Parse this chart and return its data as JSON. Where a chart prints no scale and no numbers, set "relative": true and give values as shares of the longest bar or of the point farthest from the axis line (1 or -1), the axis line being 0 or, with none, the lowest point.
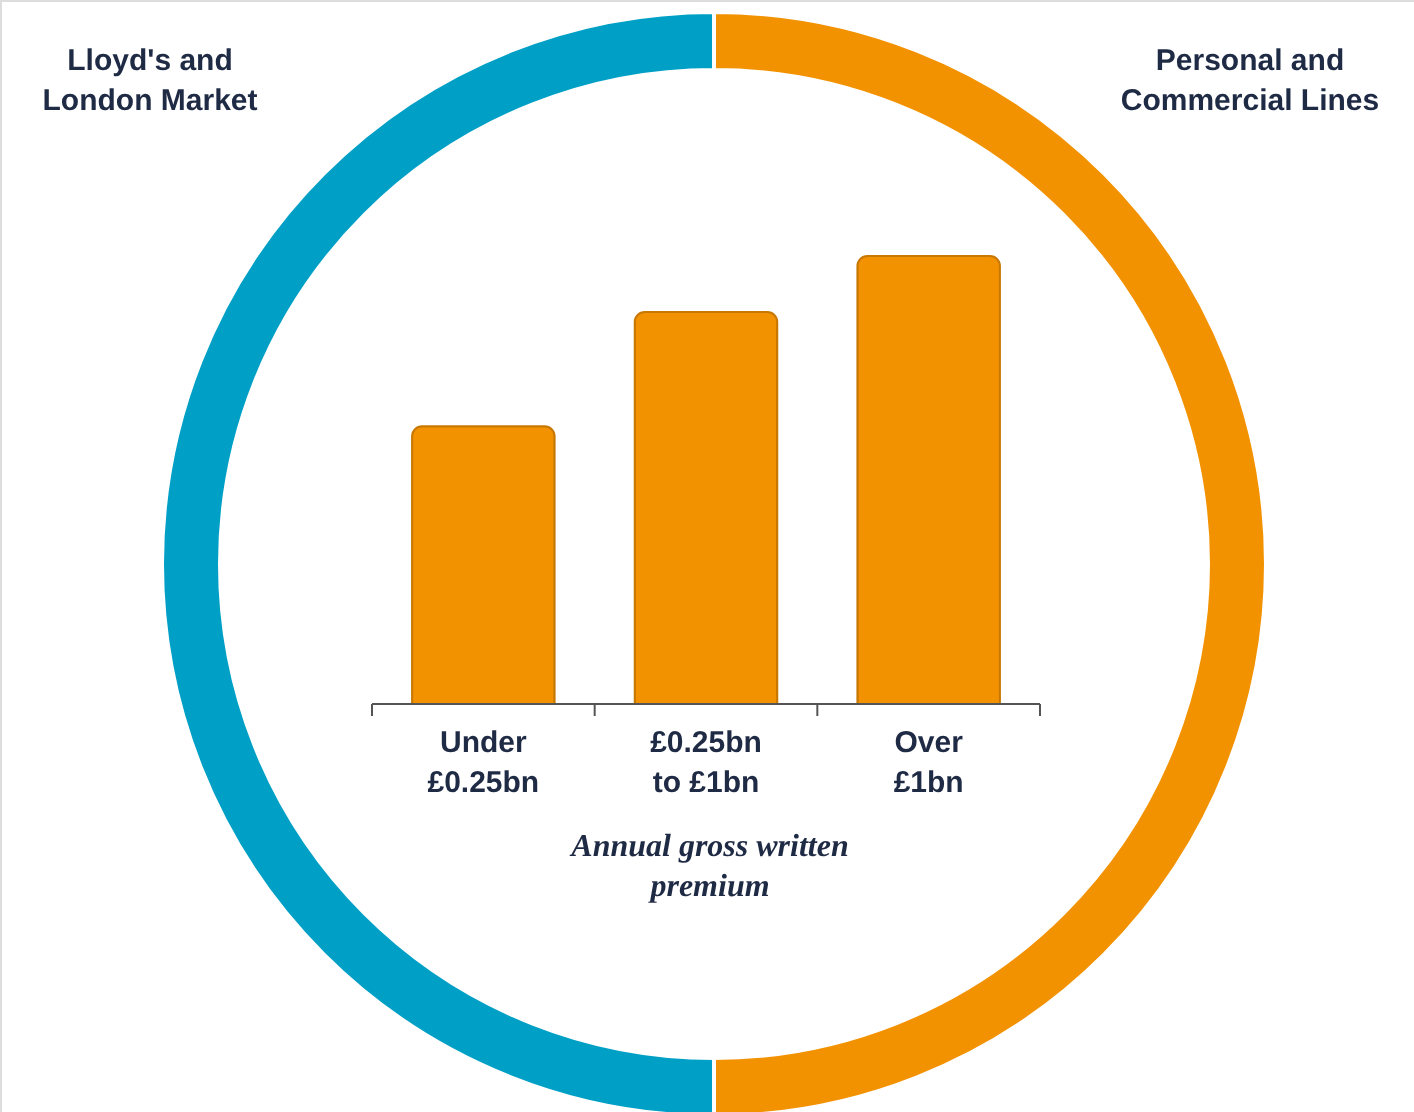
{
  "chart_data": [
    {
      "type": "donut",
      "categories": [
        "Lloyd's and London Market",
        "Personal and Commercial Lines"
      ],
      "values": [
        50,
        50
      ],
      "colors": [
        "#00a0c6",
        "#f39200"
      ]
    },
    {
      "type": "bar",
      "relative": true,
      "categories": [
        "Under £0.25bn",
        "£0.25bn to £1bn",
        "Over £1bn"
      ],
      "values": [
        0.62,
        0.875,
        1
      ],
      "color": "#f39200",
      "xlabel": "Annual gross written premium"
    }
  ]
}
